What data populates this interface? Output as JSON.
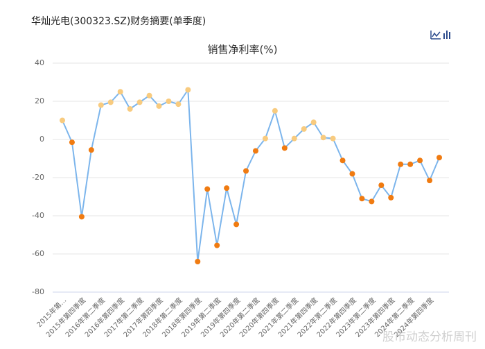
{
  "header": {
    "title": "华灿光电(300323.SZ)财务摘要(单季度)"
  },
  "watermark": "股市动态分析周刊",
  "chart_data": {
    "type": "line",
    "title": "销售净利率(%)",
    "categories": [
      "2015年第...",
      null,
      "2015年第四季度",
      null,
      "2016年第二季度",
      null,
      "2016年第四季度",
      null,
      "2017年第二季度",
      null,
      "2017年第四季度",
      null,
      "2018年第二季度",
      null,
      "2018年第四季度",
      null,
      "2019年第二季度",
      null,
      "2019年第四季度",
      null,
      "2020年第二季度",
      null,
      "2020年第四季度",
      null,
      "2021年第二季度",
      null,
      "2021年第四季度",
      null,
      "2022年第二季度",
      null,
      "2022年第四季度",
      null,
      "2023年第二季度",
      null,
      "2023年第四季度",
      null,
      "2024年第二季度",
      null,
      "2024年第四季度",
      null
    ],
    "series": [
      {
        "color": "#7cb5ec",
        "marker_color_positive": "#f8cb7f",
        "marker_color_negative": "#f07b11",
        "values": [
          10,
          -1.5,
          -40.5,
          -5.5,
          18,
          19.5,
          25,
          16,
          19.5,
          23,
          17.5,
          20,
          18.5,
          26,
          -64,
          -26,
          -55.5,
          -25.5,
          -44.5,
          -16.5,
          -6,
          0.5,
          15,
          -4.5,
          0.5,
          5.5,
          9,
          1,
          0.5,
          -11,
          -18,
          -31,
          -32.5,
          -24,
          -30.5,
          -13,
          -13,
          -11,
          -21.5,
          -9.5
        ]
      }
    ],
    "ylim": [
      -80,
      40
    ],
    "yticks": [
      -80,
      -60,
      -40,
      -20,
      0,
      20,
      40
    ],
    "grid": true
  }
}
